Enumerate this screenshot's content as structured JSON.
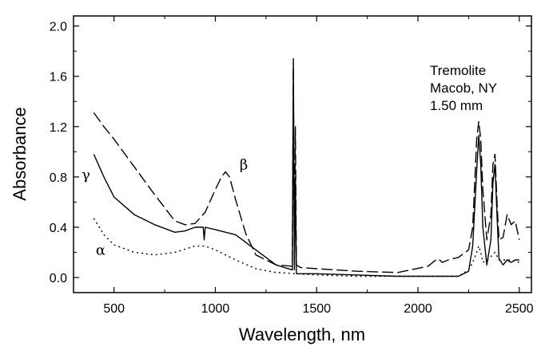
{
  "chart_data": {
    "type": "line",
    "xlabel": "Wavelength, nm",
    "ylabel": "Absorbance",
    "xlim": [
      300,
      2560
    ],
    "ylim": [
      -0.12,
      2.08
    ],
    "xticks": [
      500,
      1000,
      1500,
      2000,
      2500
    ],
    "yticks": [
      0.0,
      0.4,
      0.8,
      1.2,
      1.6,
      2.0
    ],
    "ytick_labels": [
      "0.0",
      "0.4",
      "0.8",
      "1.2",
      "1.6",
      "2.0"
    ],
    "grid": false,
    "annotation": [
      "Tremolite",
      "Macob, NY",
      "1.50 mm"
    ],
    "series": [
      {
        "name": "β",
        "style": "dashed",
        "x": [
          400,
          450,
          500,
          600,
          700,
          800,
          850,
          900,
          950,
          1000,
          1030,
          1050,
          1070,
          1100,
          1150,
          1200,
          1300,
          1380,
          1385,
          1390,
          1395,
          1400,
          1420,
          1500,
          1700,
          1900,
          2050,
          2080,
          2100,
          2120,
          2150,
          2200,
          2250,
          2270,
          2290,
          2300,
          2310,
          2320,
          2340,
          2360,
          2370,
          2380,
          2390,
          2400,
          2420,
          2440,
          2460,
          2480,
          2500
        ],
        "y": [
          1.31,
          1.2,
          1.1,
          0.88,
          0.66,
          0.45,
          0.42,
          0.43,
          0.52,
          0.7,
          0.8,
          0.84,
          0.8,
          0.62,
          0.35,
          0.18,
          0.1,
          0.09,
          1.74,
          0.1,
          1.2,
          0.1,
          0.08,
          0.07,
          0.05,
          0.04,
          0.09,
          0.13,
          0.15,
          0.12,
          0.14,
          0.16,
          0.22,
          0.4,
          1.1,
          1.24,
          1.1,
          0.7,
          0.3,
          0.5,
          0.9,
          0.98,
          0.6,
          0.3,
          0.32,
          0.5,
          0.42,
          0.45,
          0.3
        ]
      },
      {
        "name": "γ",
        "style": "solid",
        "x": [
          400,
          450,
          500,
          600,
          700,
          800,
          850,
          900,
          940,
          945,
          950,
          1000,
          1100,
          1200,
          1300,
          1380,
          1385,
          1390,
          1395,
          1400,
          1420,
          1500,
          1700,
          1900,
          2100,
          2200,
          2250,
          2270,
          2290,
          2300,
          2310,
          2320,
          2340,
          2360,
          2370,
          2380,
          2390,
          2400,
          2420,
          2440,
          2460,
          2480,
          2500
        ],
        "y": [
          0.98,
          0.8,
          0.64,
          0.5,
          0.42,
          0.36,
          0.37,
          0.4,
          0.4,
          0.3,
          0.4,
          0.38,
          0.34,
          0.22,
          0.1,
          0.06,
          1.7,
          0.06,
          0.8,
          0.03,
          0.03,
          0.03,
          0.02,
          0.01,
          0.01,
          0.01,
          0.05,
          0.25,
          0.85,
          1.13,
          0.9,
          0.4,
          0.1,
          0.3,
          0.75,
          0.9,
          0.5,
          0.15,
          0.1,
          0.14,
          0.12,
          0.14,
          0.14
        ]
      },
      {
        "name": "α",
        "style": "dotted",
        "x": [
          400,
          450,
          500,
          600,
          700,
          800,
          900,
          950,
          1000,
          1100,
          1200,
          1300,
          1400,
          1500,
          1700,
          1900,
          2100,
          2200,
          2250,
          2270,
          2290,
          2300,
          2310,
          2320,
          2350,
          2380,
          2400,
          2450,
          2500
        ],
        "y": [
          0.47,
          0.34,
          0.26,
          0.2,
          0.18,
          0.2,
          0.25,
          0.25,
          0.22,
          0.14,
          0.07,
          0.04,
          0.03,
          0.02,
          0.01,
          0.01,
          0.01,
          0.01,
          0.06,
          0.12,
          0.2,
          0.25,
          0.2,
          0.12,
          0.15,
          0.2,
          0.14,
          0.14,
          0.12
        ]
      }
    ]
  }
}
